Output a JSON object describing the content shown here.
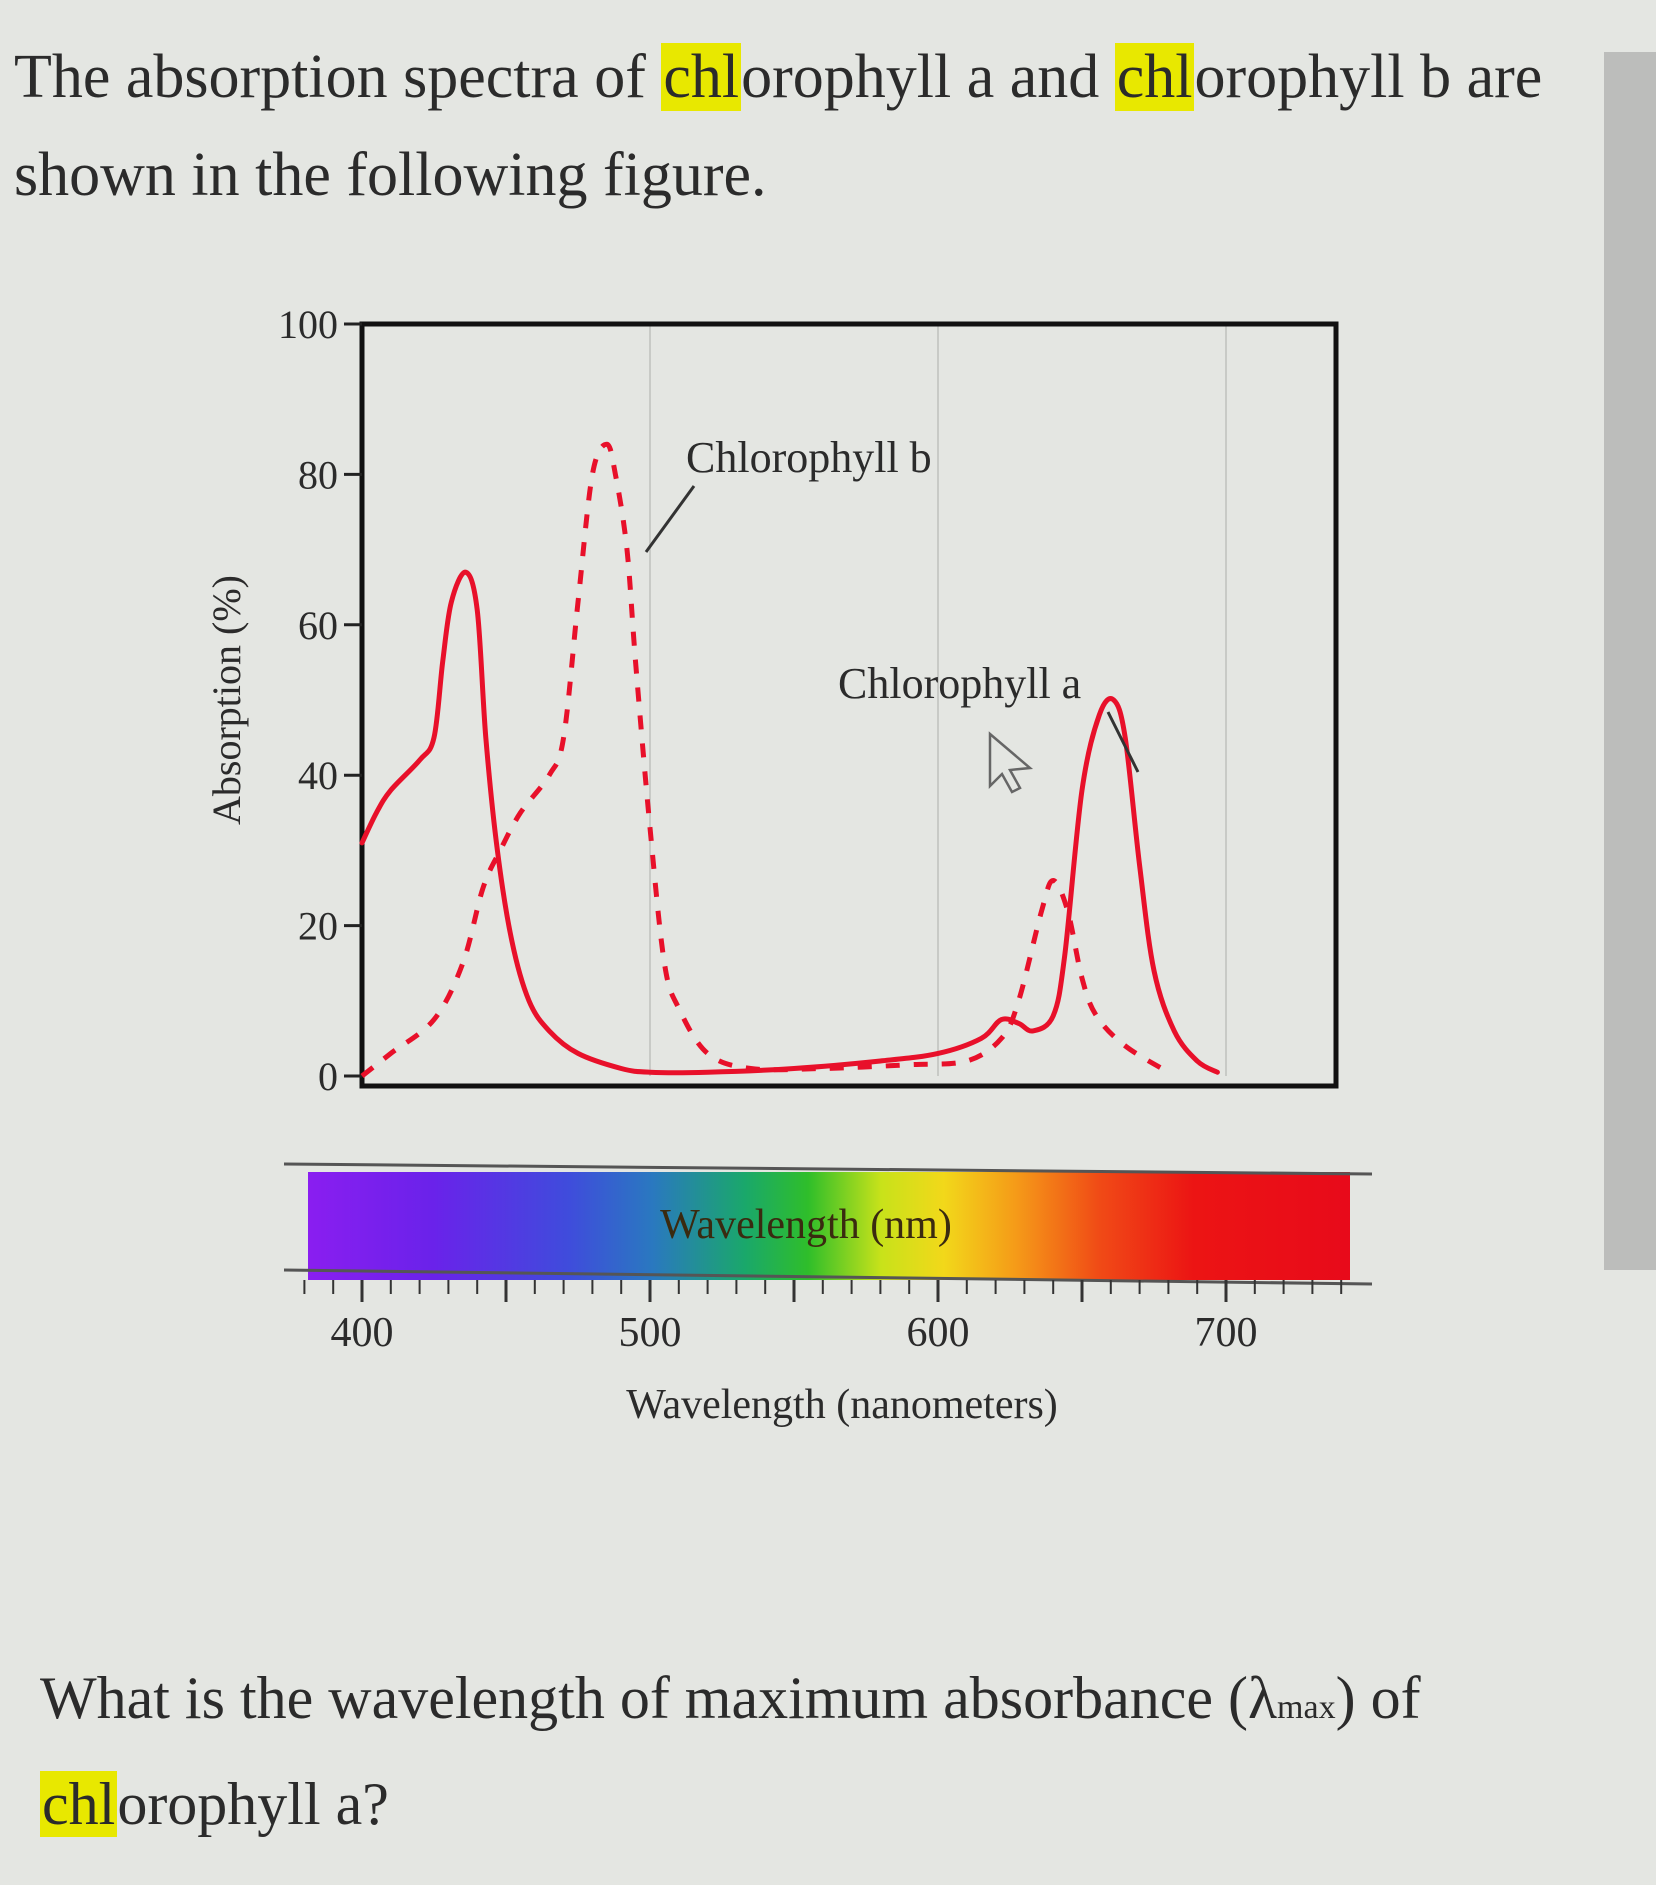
{
  "intro": {
    "p1": "The absorption spectra of ",
    "h1": "chl",
    "p2": "orophyll a and ",
    "h2": "chl",
    "p3": "orophyll b are shown in the following figure."
  },
  "question": {
    "p1": "What is the wavelength of maximum absorbance (",
    "lambda": "λ",
    "sub": "max",
    "p2": ") of ",
    "h1": "chl",
    "p3": "orophyll a?"
  },
  "chart_data": {
    "type": "line",
    "title": "",
    "xlabel": "Wavelength (nanometers)",
    "ylabel": "Absorption (%)",
    "spectrum_label": "Wavelength (nm)",
    "xlim": [
      400,
      720
    ],
    "ylim": [
      0,
      100
    ],
    "x_ticks": [
      400,
      500,
      600,
      700
    ],
    "y_ticks": [
      0,
      20,
      40,
      60,
      80,
      100
    ],
    "grid": "vertical lines at 500, 600, 700",
    "series": [
      {
        "name": "Chlorophyll a",
        "style": "solid",
        "color": "#e8102a",
        "points": [
          [
            400,
            31
          ],
          [
            405,
            35
          ],
          [
            410,
            38
          ],
          [
            420,
            42
          ],
          [
            425,
            45
          ],
          [
            428,
            55
          ],
          [
            431,
            63
          ],
          [
            436,
            67
          ],
          [
            440,
            62
          ],
          [
            443,
            45
          ],
          [
            447,
            30
          ],
          [
            452,
            18
          ],
          [
            458,
            10
          ],
          [
            465,
            6
          ],
          [
            475,
            3
          ],
          [
            490,
            1
          ],
          [
            500,
            0.5
          ],
          [
            520,
            0.5
          ],
          [
            550,
            1
          ],
          [
            580,
            2
          ],
          [
            600,
            3
          ],
          [
            615,
            5
          ],
          [
            622,
            7.5
          ],
          [
            628,
            7
          ],
          [
            633,
            6
          ],
          [
            640,
            8
          ],
          [
            644,
            16
          ],
          [
            650,
            38
          ],
          [
            656,
            48
          ],
          [
            661,
            50
          ],
          [
            665,
            45
          ],
          [
            670,
            28
          ],
          [
            675,
            14
          ],
          [
            682,
            6
          ],
          [
            690,
            2
          ],
          [
            697,
            0.5
          ]
        ]
      },
      {
        "name": "Chlorophyll b",
        "style": "dashed",
        "color": "#e8102a",
        "points": [
          [
            400,
            0
          ],
          [
            410,
            3
          ],
          [
            425,
            7.5
          ],
          [
            435,
            15
          ],
          [
            442,
            25
          ],
          [
            448,
            30
          ],
          [
            455,
            35
          ],
          [
            465,
            40
          ],
          [
            470,
            45
          ],
          [
            475,
            63
          ],
          [
            480,
            80
          ],
          [
            485,
            84
          ],
          [
            488,
            80
          ],
          [
            492,
            70
          ],
          [
            495,
            55
          ],
          [
            500,
            33
          ],
          [
            505,
            15
          ],
          [
            510,
            9
          ],
          [
            520,
            3
          ],
          [
            535,
            1
          ],
          [
            560,
            1
          ],
          [
            590,
            1.5
          ],
          [
            610,
            2
          ],
          [
            622,
            5
          ],
          [
            628,
            10
          ],
          [
            636,
            22
          ],
          [
            640,
            26
          ],
          [
            645,
            22
          ],
          [
            650,
            13
          ],
          [
            655,
            8
          ],
          [
            665,
            4
          ],
          [
            680,
            0.5
          ]
        ]
      }
    ]
  }
}
